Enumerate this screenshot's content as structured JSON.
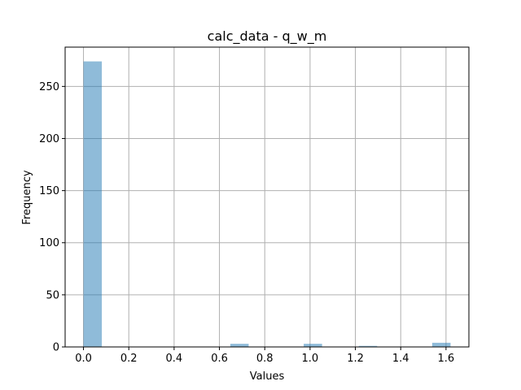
{
  "chart_data": {
    "type": "bar",
    "title": "calc_data - q_w_m",
    "xlabel": "Values",
    "ylabel": "Frequency",
    "xlim": [
      -0.081,
      1.701
    ],
    "ylim": [
      0,
      287.7
    ],
    "grid": true,
    "bar_color": "#1f77b4",
    "bar_opacity": 0.5,
    "bin_width": 0.081,
    "bins": [
      {
        "x0": 0.0,
        "x1": 0.081,
        "count": 274
      },
      {
        "x0": 0.648,
        "x1": 0.729,
        "count": 3
      },
      {
        "x0": 0.972,
        "x1": 1.053,
        "count": 3
      },
      {
        "x0": 1.215,
        "x1": 1.296,
        "count": 1
      },
      {
        "x0": 1.539,
        "x1": 1.62,
        "count": 4
      }
    ],
    "x_ticks": [
      0.0,
      0.2,
      0.4,
      0.6,
      0.8,
      1.0,
      1.2,
      1.4,
      1.6
    ],
    "x_tick_labels": [
      "0.0",
      "0.2",
      "0.4",
      "0.6",
      "0.8",
      "1.0",
      "1.2",
      "1.4",
      "1.6"
    ],
    "y_ticks": [
      0,
      50,
      100,
      150,
      200,
      250
    ],
    "y_tick_labels": [
      "0",
      "50",
      "100",
      "150",
      "200",
      "250"
    ]
  }
}
